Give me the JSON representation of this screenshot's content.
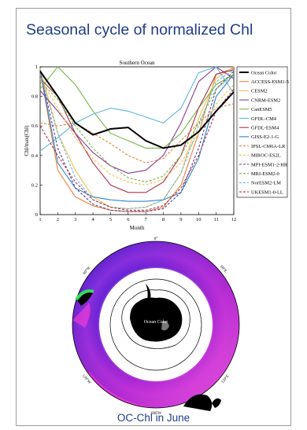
{
  "slide_title": "Seasonal cycle of normalized Chl",
  "caption": "OC-Chl in June",
  "chart_data": {
    "type": "line",
    "title": "Southern Ocean",
    "xlabel": "Month",
    "ylabel": "Chl/max(Chl)",
    "xlim": [
      1,
      12
    ],
    "ylim": [
      0,
      1
    ],
    "x": [
      1,
      2,
      3,
      4,
      5,
      6,
      7,
      8,
      9,
      10,
      11,
      12
    ],
    "xticks": [
      "1",
      "2",
      "3",
      "4",
      "5",
      "6",
      "7",
      "8",
      "9",
      "10",
      "11",
      "12"
    ],
    "yticks": [
      "0",
      "0.2",
      "0.4",
      "0.6",
      "0.8",
      "1"
    ],
    "legend_position": "right",
    "series": [
      {
        "name": "Ocean Color",
        "color": "#000000",
        "style": "solid",
        "width": 2,
        "values": [
          0.97,
          0.8,
          0.62,
          0.54,
          0.58,
          0.59,
          0.5,
          0.45,
          0.47,
          0.56,
          0.7,
          0.83
        ]
      },
      {
        "name": "ACCESS-ESM1-5",
        "color": "#e8823c",
        "style": "solid",
        "values": [
          0.97,
          0.3,
          0.12,
          0.06,
          0.03,
          0.02,
          0.02,
          0.05,
          0.2,
          0.55,
          0.95,
          0.99
        ]
      },
      {
        "name": "CESM2",
        "color": "#f2c14e",
        "style": "solid",
        "values": [
          0.99,
          0.55,
          0.3,
          0.12,
          0.05,
          0.04,
          0.05,
          0.1,
          0.28,
          0.65,
          0.92,
          1.0
        ]
      },
      {
        "name": "CNRM-ESM2",
        "color": "#8e3b95",
        "style": "solid",
        "values": [
          0.84,
          0.7,
          0.55,
          0.42,
          0.33,
          0.28,
          0.3,
          0.4,
          0.62,
          0.9,
          1.0,
          0.92
        ]
      },
      {
        "name": "CanESM5",
        "color": "#7ab648",
        "style": "solid",
        "values": [
          0.85,
          1.0,
          0.88,
          0.7,
          0.55,
          0.5,
          0.45,
          0.45,
          0.55,
          0.72,
          0.88,
          0.95
        ]
      },
      {
        "name": "GFDL-CM4",
        "color": "#5fb5e3",
        "style": "solid",
        "values": [
          0.43,
          0.52,
          0.62,
          0.68,
          0.72,
          0.7,
          0.66,
          0.62,
          0.72,
          0.96,
          1.0,
          0.82
        ]
      },
      {
        "name": "GFDL-ESM4",
        "color": "#a8324a",
        "style": "solid",
        "values": [
          0.92,
          0.8,
          0.55,
          0.35,
          0.2,
          0.15,
          0.15,
          0.22,
          0.4,
          0.72,
          0.95,
          0.98
        ]
      },
      {
        "name": "GISS-E2-1-G",
        "color": "#2d86c7",
        "style": "solid",
        "values": [
          0.98,
          0.35,
          0.18,
          0.12,
          0.1,
          0.09,
          0.09,
          0.1,
          0.15,
          0.38,
          0.8,
          0.95
        ]
      },
      {
        "name": "IPSL-CM6A-LR",
        "color": "#e8823c",
        "style": "dashed",
        "values": [
          0.62,
          0.6,
          0.62,
          0.55,
          0.48,
          0.4,
          0.35,
          0.38,
          0.5,
          0.62,
          0.72,
          0.75
        ]
      },
      {
        "name": "MIROC-ES2L",
        "color": "#f2c14e",
        "style": "dashed",
        "values": [
          0.92,
          0.72,
          0.52,
          0.38,
          0.27,
          0.22,
          0.2,
          0.24,
          0.35,
          0.55,
          0.75,
          0.88
        ]
      },
      {
        "name": "MPI-ESM1-2-HR",
        "color": "#5a3d99",
        "style": "dashed",
        "values": [
          0.97,
          0.45,
          0.18,
          0.07,
          0.03,
          0.02,
          0.02,
          0.04,
          0.15,
          0.45,
          0.85,
          0.97
        ]
      },
      {
        "name": "MRI-ESM2-0",
        "color": "#7ab648",
        "style": "dashed",
        "values": [
          0.9,
          0.78,
          0.6,
          0.45,
          0.33,
          0.25,
          0.22,
          0.26,
          0.4,
          0.62,
          0.85,
          0.95
        ]
      },
      {
        "name": "NorESM2-LM",
        "color": "#5fb5e3",
        "style": "dashed",
        "values": [
          0.95,
          0.55,
          0.25,
          0.1,
          0.05,
          0.04,
          0.05,
          0.1,
          0.28,
          0.6,
          0.9,
          0.98
        ]
      },
      {
        "name": "UKESM1-0-LL",
        "color": "#a8324a",
        "style": "dashed",
        "values": [
          0.6,
          0.4,
          0.22,
          0.1,
          0.05,
          0.03,
          0.03,
          0.06,
          0.18,
          0.4,
          0.7,
          0.85
        ]
      }
    ]
  },
  "map": {
    "center_label": "Ocean Color",
    "lon_labels": [
      "0°",
      "60°E",
      "120°E",
      "180°W",
      "120°W",
      "60°W"
    ],
    "colors": {
      "ocean_low": "#3a1fd6",
      "ocean_mid": "#9b2fe8",
      "ocean_high": "#ff2fd0",
      "coastal": "#2fe05a",
      "land": "#000000",
      "ice": "#ffffff"
    }
  }
}
